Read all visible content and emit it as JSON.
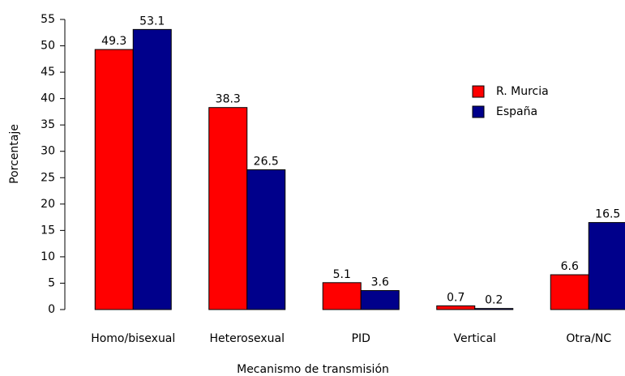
{
  "chart_data": {
    "type": "bar",
    "x_label": "Mecanismo de transmisión",
    "y_label": "Porcentaje",
    "categories": [
      "Homo/bisexual",
      "Heterosexual",
      "PID",
      "Vertical",
      "Otra/NC"
    ],
    "series": [
      {
        "name": "R. Murcia",
        "color": "#ff0000",
        "values": [
          49.3,
          38.3,
          5.1,
          0.7,
          6.6
        ]
      },
      {
        "name": "España",
        "color": "#00008b",
        "values": [
          53.1,
          26.5,
          3.6,
          0.2,
          16.5
        ]
      }
    ],
    "ylim": [
      0,
      55
    ],
    "yticks": [
      0,
      5,
      10,
      15,
      20,
      25,
      30,
      35,
      40,
      45,
      50,
      55
    ]
  }
}
